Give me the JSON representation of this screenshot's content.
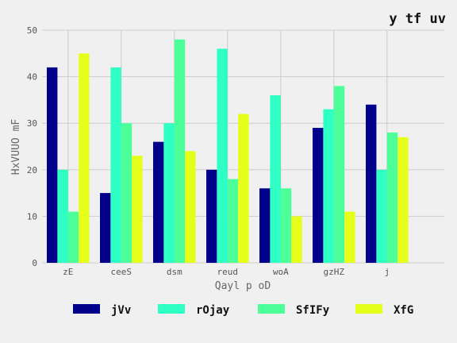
{
  "chart_data": {
    "type": "bar",
    "title": "y tf uv",
    "xlabel": "Qayl p oD",
    "ylabel": "HxVUUO mF",
    "categories": [
      "zE",
      "ceeS",
      "dsm",
      "reud",
      "woA",
      "gzHZ",
      "j"
    ],
    "ylim": [
      0,
      50
    ],
    "yticks": [
      0,
      10,
      20,
      30,
      40,
      50
    ],
    "grid": true,
    "legend_position": "bottom",
    "series": [
      {
        "name": "jVv",
        "color": "#00008b",
        "values": [
          42,
          15,
          26,
          20,
          16,
          29,
          34
        ]
      },
      {
        "name": "rOjay",
        "color": "#2effc4",
        "values": [
          20,
          42,
          30,
          46,
          36,
          33,
          20
        ]
      },
      {
        "name": "SfIFy",
        "color": "#4cff98",
        "values": [
          11,
          30,
          48,
          18,
          16,
          38,
          28
        ]
      },
      {
        "name": "XfG",
        "color": "#e6ff1a",
        "values": [
          45,
          23,
          24,
          32,
          10,
          11,
          27
        ]
      }
    ]
  }
}
